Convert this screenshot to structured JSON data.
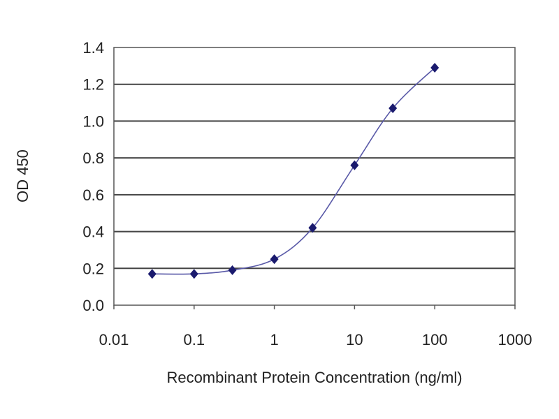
{
  "chart_data": {
    "type": "line",
    "title": "",
    "xlabel": "Recombinant Protein Concentration (ng/ml)",
    "ylabel": "OD 450",
    "xscale": "log",
    "xlim": [
      0.01,
      1000
    ],
    "ylim": [
      0.0,
      1.4
    ],
    "xticks": [
      "0.01",
      "0.1",
      "1",
      "10",
      "100",
      "1000"
    ],
    "yticks": [
      "0.0",
      "0.2",
      "0.4",
      "0.6",
      "0.8",
      "1.0",
      "1.2",
      "1.4"
    ],
    "grid": "horizontal",
    "legend": "none",
    "series": [
      {
        "x": [
          0.03,
          0.1,
          0.3,
          1,
          3,
          10,
          30,
          100
        ],
        "y": [
          0.17,
          0.17,
          0.19,
          0.25,
          0.42,
          0.76,
          1.07,
          1.29
        ],
        "color": "#1a1a6e",
        "marker": "diamond",
        "line": "smooth"
      }
    ]
  }
}
